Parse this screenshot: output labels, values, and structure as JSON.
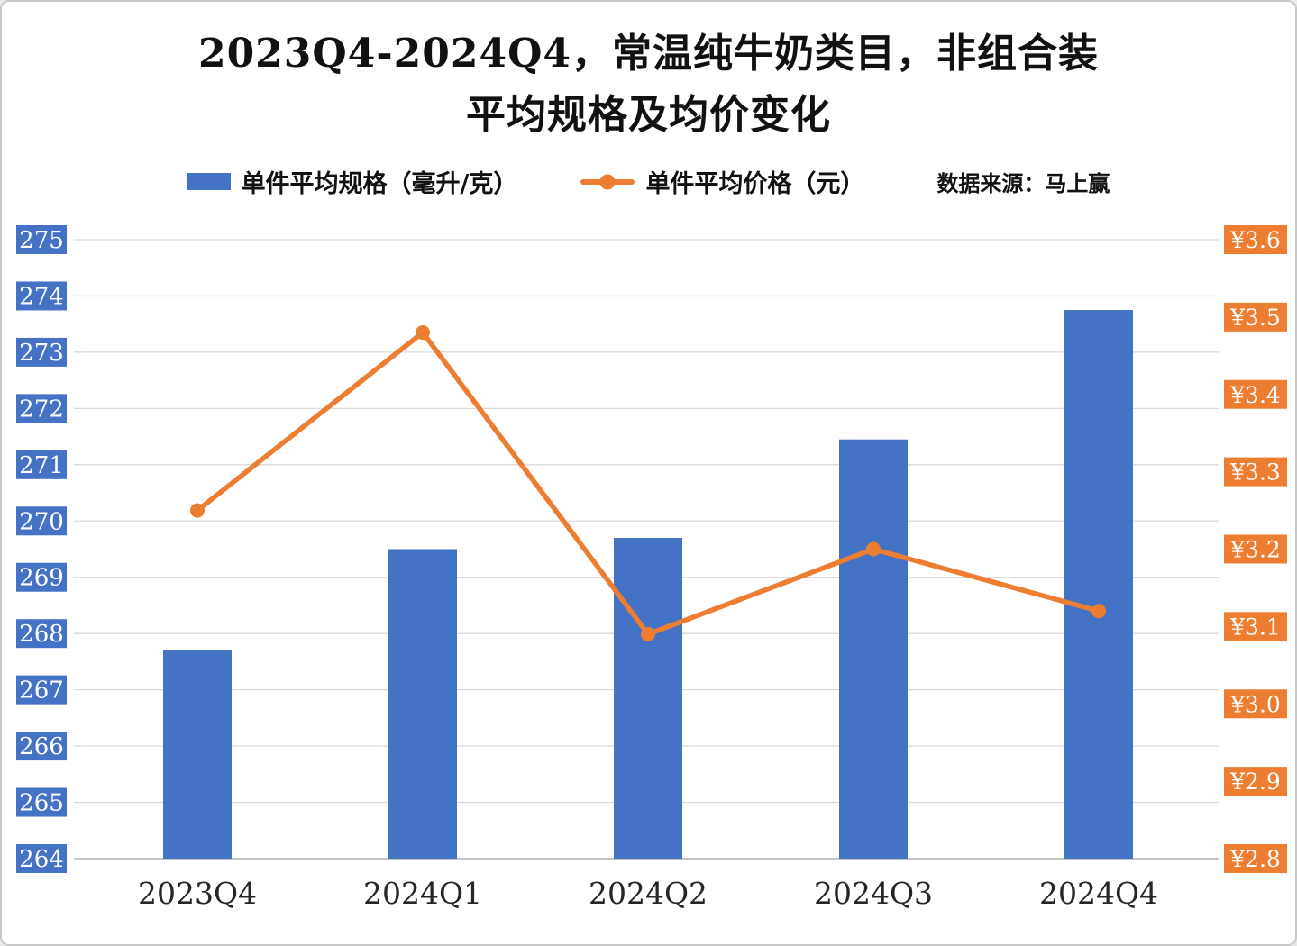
{
  "title": {
    "line1": "2023Q4-2024Q4，常温纯牛奶类目，非组合装",
    "line2": "平均规格及均价变化"
  },
  "legend": {
    "bar_label": "单件平均规格（毫升/克）",
    "line_label": "单件平均价格（元）",
    "source": "数据来源：马上赢"
  },
  "chart_data": {
    "type": "bar+line combo",
    "categories": [
      "2023Q4",
      "2024Q1",
      "2024Q2",
      "2024Q3",
      "2024Q4"
    ],
    "series": [
      {
        "name": "单件平均规格（毫升/克）",
        "type": "bar",
        "axis": "left",
        "color": "#4472C4",
        "values": [
          267.7,
          269.5,
          269.7,
          271.45,
          273.75
        ]
      },
      {
        "name": "单件平均价格（元）",
        "type": "line",
        "axis": "right",
        "color": "#ED7D31",
        "values": [
          3.25,
          3.48,
          3.09,
          3.2,
          3.12
        ]
      }
    ],
    "left_axis": {
      "min": 264,
      "max": 275,
      "step": 1,
      "ticks": [
        275,
        274,
        273,
        272,
        271,
        270,
        269,
        268,
        267,
        266,
        265,
        264
      ],
      "box_color": "#4472C4",
      "text_color": "#FFFFFF"
    },
    "right_axis": {
      "min": 2.8,
      "max": 3.6,
      "step": 0.1,
      "ticks": [
        "¥3.6",
        "¥3.5",
        "¥3.4",
        "¥3.3",
        "¥3.2",
        "¥3.1",
        "¥3.0",
        "¥2.9",
        "¥2.8"
      ],
      "box_color": "#ED7D31",
      "text_color": "#FFFFFF"
    },
    "grid": true,
    "legend_position": "top"
  },
  "colors": {
    "bar": "#4472C4",
    "line": "#ED7D31",
    "grid": "#D9D9D9",
    "baseline": "#BFBFBF",
    "x_label": "#262626",
    "background": "#FFFFFF",
    "border": "#C9C9C9"
  }
}
